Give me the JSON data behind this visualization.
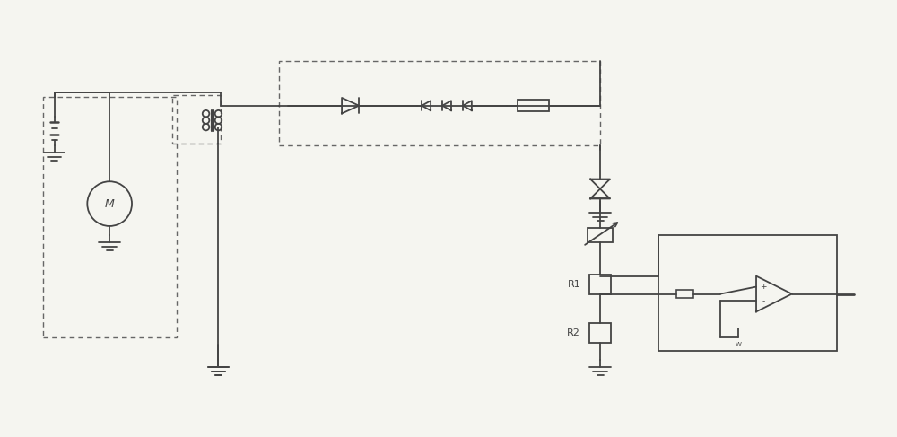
{
  "bg_color": "#f5f5f0",
  "line_color": "#444444",
  "dashed_color": "#666666",
  "lw": 1.3,
  "lw_thick": 2.0,
  "fig_width": 10.0,
  "fig_height": 4.87,
  "xlim": [
    0,
    100
  ],
  "ylim": [
    0,
    48.7
  ]
}
